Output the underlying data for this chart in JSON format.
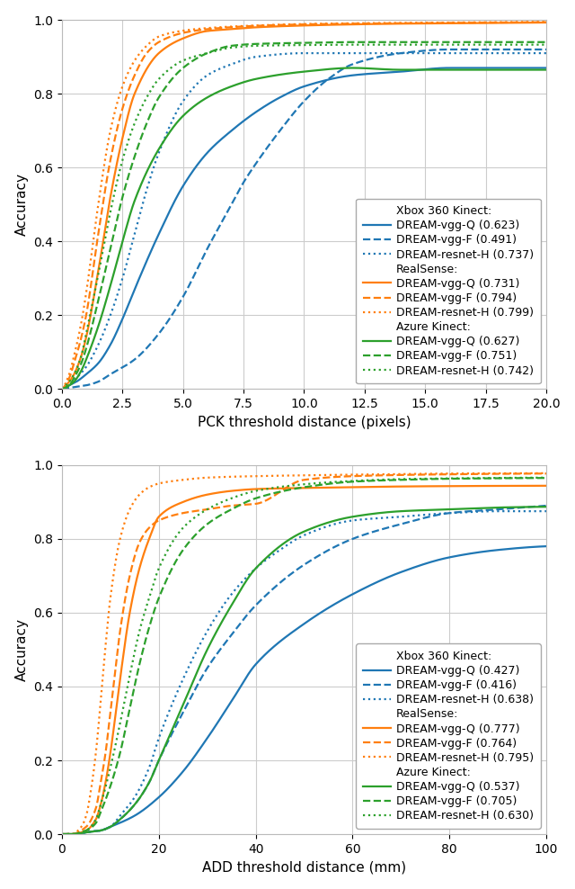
{
  "plot1": {
    "xlabel": "PCK threshold distance (pixels)",
    "ylabel": "Accuracy",
    "xlim": [
      0.0,
      20.0
    ],
    "ylim": [
      0.0,
      1.0
    ],
    "xticks": [
      0.0,
      2.5,
      5.0,
      7.5,
      10.0,
      12.5,
      15.0,
      17.5,
      20.0
    ],
    "yticks": [
      0.0,
      0.2,
      0.4,
      0.6,
      0.8,
      1.0
    ],
    "legend_loc": "lower right",
    "legend_bbox": null,
    "curves": [
      {
        "color": "#1f77b4",
        "linestyle": "solid",
        "pts_x": [
          0,
          0.3,
          0.6,
          1.0,
          1.5,
          2.0,
          2.5,
          3.0,
          4.0,
          5.0,
          6.0,
          7.0,
          8.0,
          9.0,
          10.0,
          12.0,
          14.0,
          16.0,
          18.0,
          20.0
        ],
        "pts_y": [
          0,
          0.01,
          0.02,
          0.04,
          0.07,
          0.12,
          0.19,
          0.27,
          0.42,
          0.55,
          0.64,
          0.7,
          0.75,
          0.79,
          0.82,
          0.85,
          0.86,
          0.87,
          0.87,
          0.87
        ]
      },
      {
        "color": "#1f77b4",
        "linestyle": "dashed",
        "pts_x": [
          0,
          0.5,
          1.0,
          1.5,
          2.0,
          3.0,
          4.0,
          5.0,
          6.0,
          7.0,
          7.5,
          8.0,
          9.0,
          10.0,
          11.0,
          12.0,
          14.0,
          16.0,
          18.0,
          20.0
        ],
        "pts_y": [
          0,
          0.005,
          0.01,
          0.02,
          0.04,
          0.08,
          0.15,
          0.25,
          0.38,
          0.5,
          0.56,
          0.61,
          0.7,
          0.78,
          0.84,
          0.88,
          0.91,
          0.92,
          0.92,
          0.92
        ]
      },
      {
        "color": "#1f77b4",
        "linestyle": "dotted",
        "pts_x": [
          0,
          0.3,
          0.6,
          1.0,
          1.5,
          2.0,
          2.5,
          3.0,
          3.5,
          4.0,
          5.0,
          6.0,
          7.0,
          8.0,
          10.0,
          12.0,
          14.0,
          16.0,
          18.0,
          20.0
        ],
        "pts_y": [
          0,
          0.01,
          0.03,
          0.06,
          0.12,
          0.2,
          0.3,
          0.42,
          0.54,
          0.64,
          0.78,
          0.85,
          0.88,
          0.9,
          0.91,
          0.91,
          0.91,
          0.91,
          0.91,
          0.91
        ]
      },
      {
        "color": "#ff7f0e",
        "linestyle": "solid",
        "pts_x": [
          0,
          0.3,
          0.5,
          0.8,
          1.0,
          1.5,
          2.0,
          2.5,
          3.0,
          4.0,
          5.0,
          6.0,
          7.0,
          8.0,
          10.0,
          12.0,
          14.0,
          16.0,
          18.0,
          20.0
        ],
        "pts_y": [
          0,
          0.02,
          0.04,
          0.09,
          0.14,
          0.32,
          0.52,
          0.68,
          0.8,
          0.91,
          0.95,
          0.97,
          0.975,
          0.98,
          0.985,
          0.988,
          0.99,
          0.991,
          0.992,
          0.993
        ]
      },
      {
        "color": "#ff7f0e",
        "linestyle": "dashed",
        "pts_x": [
          0,
          0.3,
          0.5,
          0.8,
          1.0,
          1.5,
          2.0,
          2.5,
          3.0,
          3.5,
          4.0,
          5.0,
          6.0,
          8.0,
          10.0,
          12.0,
          14.0,
          16.0,
          18.0,
          20.0
        ],
        "pts_y": [
          0,
          0.03,
          0.07,
          0.14,
          0.2,
          0.42,
          0.62,
          0.76,
          0.85,
          0.91,
          0.94,
          0.965,
          0.975,
          0.984,
          0.988,
          0.99,
          0.991,
          0.992,
          0.993,
          0.994
        ]
      },
      {
        "color": "#ff7f0e",
        "linestyle": "dotted",
        "pts_x": [
          0,
          0.3,
          0.5,
          0.8,
          1.0,
          1.5,
          2.0,
          2.5,
          3.0,
          3.5,
          4.0,
          5.0,
          6.0,
          8.0,
          10.0,
          12.0,
          14.0,
          16.0,
          18.0,
          20.0
        ],
        "pts_y": [
          0,
          0.04,
          0.09,
          0.18,
          0.26,
          0.5,
          0.7,
          0.82,
          0.89,
          0.93,
          0.955,
          0.971,
          0.978,
          0.985,
          0.989,
          0.991,
          0.992,
          0.993,
          0.994,
          0.995
        ]
      },
      {
        "color": "#2ca02c",
        "linestyle": "solid",
        "pts_x": [
          0,
          0.3,
          0.5,
          0.8,
          1.0,
          1.5,
          2.0,
          2.5,
          3.0,
          4.0,
          5.0,
          6.0,
          7.0,
          8.0,
          10.0,
          12.0,
          14.0,
          16.0,
          18.0,
          20.0
        ],
        "pts_y": [
          0,
          0.01,
          0.02,
          0.05,
          0.08,
          0.17,
          0.28,
          0.4,
          0.51,
          0.65,
          0.74,
          0.79,
          0.82,
          0.84,
          0.86,
          0.87,
          0.865,
          0.865,
          0.865,
          0.865
        ]
      },
      {
        "color": "#2ca02c",
        "linestyle": "dashed",
        "pts_x": [
          0,
          0.3,
          0.5,
          0.8,
          1.0,
          1.5,
          2.0,
          2.5,
          3.0,
          3.5,
          4.0,
          5.0,
          6.0,
          7.0,
          8.0,
          10.0,
          12.0,
          14.0,
          16.0,
          18.0,
          20.0
        ],
        "pts_y": [
          0,
          0.01,
          0.03,
          0.07,
          0.11,
          0.24,
          0.38,
          0.52,
          0.63,
          0.72,
          0.79,
          0.87,
          0.91,
          0.93,
          0.935,
          0.938,
          0.94,
          0.94,
          0.94,
          0.94,
          0.94
        ]
      },
      {
        "color": "#2ca02c",
        "linestyle": "dotted",
        "pts_x": [
          0,
          0.3,
          0.5,
          0.8,
          1.0,
          1.5,
          2.0,
          2.5,
          3.0,
          3.5,
          4.0,
          5.0,
          6.0,
          7.0,
          8.0,
          10.0,
          12.0,
          14.0,
          16.0,
          18.0,
          20.0
        ],
        "pts_y": [
          0,
          0.02,
          0.04,
          0.09,
          0.15,
          0.31,
          0.48,
          0.62,
          0.72,
          0.79,
          0.84,
          0.89,
          0.91,
          0.925,
          0.93,
          0.932,
          0.933,
          0.933,
          0.933,
          0.933,
          0.933
        ]
      }
    ],
    "legend_groups": [
      {
        "label": "Xbox 360 Kinect:",
        "color": "none",
        "linestyle": "solid"
      },
      {
        "label": "DREAM-vgg-Q (0.623)",
        "color": "#1f77b4",
        "linestyle": "solid"
      },
      {
        "label": "DREAM-vgg-F (0.491)",
        "color": "#1f77b4",
        "linestyle": "dashed"
      },
      {
        "label": "DREAM-resnet-H (0.737)",
        "color": "#1f77b4",
        "linestyle": "dotted"
      },
      {
        "label": "RealSense:",
        "color": "none",
        "linestyle": "solid"
      },
      {
        "label": "DREAM-vgg-Q (0.731)",
        "color": "#ff7f0e",
        "linestyle": "solid"
      },
      {
        "label": "DREAM-vgg-F (0.794)",
        "color": "#ff7f0e",
        "linestyle": "dashed"
      },
      {
        "label": "DREAM-resnet-H (0.799)",
        "color": "#ff7f0e",
        "linestyle": "dotted"
      },
      {
        "label": "Azure Kinect:",
        "color": "none",
        "linestyle": "solid"
      },
      {
        "label": "DREAM-vgg-Q (0.627)",
        "color": "#2ca02c",
        "linestyle": "solid"
      },
      {
        "label": "DREAM-vgg-F (0.751)",
        "color": "#2ca02c",
        "linestyle": "dashed"
      },
      {
        "label": "DREAM-resnet-H (0.742)",
        "color": "#2ca02c",
        "linestyle": "dotted"
      }
    ]
  },
  "plot2": {
    "xlabel": "ADD threshold distance (mm)",
    "ylabel": "Accuracy",
    "xlim": [
      0.0,
      100.0
    ],
    "ylim": [
      0.0,
      1.0
    ],
    "xticks": [
      0,
      20,
      40,
      60,
      80,
      100
    ],
    "yticks": [
      0.0,
      0.2,
      0.4,
      0.6,
      0.8,
      1.0
    ],
    "curves": [
      {
        "color": "#1f77b4",
        "linestyle": "solid",
        "pts_x": [
          0,
          2,
          5,
          8,
          10,
          15,
          20,
          25,
          30,
          35,
          40,
          50,
          60,
          70,
          80,
          90,
          100
        ],
        "pts_y": [
          0,
          0.0,
          0.005,
          0.01,
          0.02,
          0.05,
          0.1,
          0.17,
          0.26,
          0.36,
          0.46,
          0.57,
          0.65,
          0.71,
          0.75,
          0.77,
          0.78
        ]
      },
      {
        "color": "#1f77b4",
        "linestyle": "dashed",
        "pts_x": [
          0,
          2,
          5,
          8,
          10,
          12,
          15,
          18,
          20,
          25,
          30,
          35,
          40,
          50,
          60,
          70,
          80,
          90,
          100
        ],
        "pts_y": [
          0,
          0.0,
          0.005,
          0.01,
          0.02,
          0.04,
          0.08,
          0.14,
          0.2,
          0.33,
          0.45,
          0.54,
          0.62,
          0.73,
          0.8,
          0.84,
          0.87,
          0.88,
          0.89
        ]
      },
      {
        "color": "#1f77b4",
        "linestyle": "dotted",
        "pts_x": [
          0,
          2,
          5,
          8,
          10,
          12,
          15,
          18,
          20,
          25,
          30,
          35,
          40,
          45,
          50,
          60,
          70,
          80,
          90,
          100
        ],
        "pts_y": [
          0,
          0.0,
          0.005,
          0.01,
          0.02,
          0.05,
          0.1,
          0.18,
          0.26,
          0.42,
          0.55,
          0.65,
          0.72,
          0.77,
          0.81,
          0.85,
          0.86,
          0.87,
          0.875,
          0.875
        ]
      },
      {
        "color": "#ff7f0e",
        "linestyle": "solid",
        "pts_x": [
          0,
          2,
          5,
          7,
          8,
          9,
          10,
          12,
          14,
          16,
          18,
          20,
          25,
          30,
          35,
          40,
          50,
          60,
          70,
          80,
          100
        ],
        "pts_y": [
          0,
          0.0,
          0.01,
          0.04,
          0.08,
          0.14,
          0.22,
          0.42,
          0.6,
          0.72,
          0.8,
          0.86,
          0.9,
          0.92,
          0.93,
          0.935,
          0.938,
          0.94,
          0.942,
          0.943,
          0.944
        ]
      },
      {
        "color": "#ff7f0e",
        "linestyle": "dashed",
        "pts_x": [
          0,
          2,
          5,
          7,
          8,
          9,
          10,
          11,
          12,
          14,
          16,
          18,
          20,
          25,
          30,
          35,
          40,
          50,
          60,
          80,
          100
        ],
        "pts_y": [
          0,
          0.0,
          0.02,
          0.07,
          0.14,
          0.22,
          0.33,
          0.44,
          0.55,
          0.7,
          0.79,
          0.83,
          0.85,
          0.87,
          0.88,
          0.89,
          0.895,
          0.96,
          0.97,
          0.975,
          0.977
        ]
      },
      {
        "color": "#ff7f0e",
        "linestyle": "dotted",
        "pts_x": [
          0,
          2,
          4,
          5,
          6,
          7,
          8,
          9,
          10,
          12,
          14,
          16,
          18,
          20,
          25,
          30,
          40,
          60,
          80,
          100
        ],
        "pts_y": [
          0,
          0.0,
          0.02,
          0.05,
          0.12,
          0.22,
          0.36,
          0.51,
          0.64,
          0.8,
          0.88,
          0.92,
          0.94,
          0.95,
          0.96,
          0.966,
          0.97,
          0.974,
          0.977,
          0.978
        ]
      },
      {
        "color": "#2ca02c",
        "linestyle": "solid",
        "pts_x": [
          0,
          2,
          5,
          8,
          10,
          12,
          15,
          18,
          20,
          25,
          30,
          35,
          40,
          50,
          60,
          70,
          80,
          90,
          100
        ],
        "pts_y": [
          0,
          0.0,
          0.005,
          0.01,
          0.02,
          0.04,
          0.08,
          0.14,
          0.2,
          0.35,
          0.5,
          0.62,
          0.72,
          0.82,
          0.86,
          0.875,
          0.88,
          0.885,
          0.887
        ]
      },
      {
        "color": "#2ca02c",
        "linestyle": "dashed",
        "pts_x": [
          0,
          2,
          5,
          7,
          8,
          10,
          12,
          14,
          16,
          18,
          20,
          25,
          30,
          35,
          40,
          50,
          60,
          70,
          80,
          100
        ],
        "pts_y": [
          0,
          0.0,
          0.01,
          0.03,
          0.06,
          0.13,
          0.22,
          0.34,
          0.46,
          0.56,
          0.64,
          0.77,
          0.84,
          0.88,
          0.91,
          0.94,
          0.955,
          0.96,
          0.963,
          0.965
        ]
      },
      {
        "color": "#2ca02c",
        "linestyle": "dotted",
        "pts_x": [
          0,
          2,
          5,
          7,
          8,
          10,
          12,
          14,
          16,
          18,
          20,
          25,
          30,
          35,
          40,
          50,
          60,
          70,
          80,
          100
        ],
        "pts_y": [
          0,
          0.0,
          0.01,
          0.04,
          0.08,
          0.18,
          0.3,
          0.43,
          0.55,
          0.64,
          0.72,
          0.83,
          0.88,
          0.91,
          0.93,
          0.948,
          0.957,
          0.962,
          0.964,
          0.966
        ]
      }
    ],
    "legend_groups": [
      {
        "label": "Xbox 360 Kinect:",
        "color": "none",
        "linestyle": "solid"
      },
      {
        "label": "DREAM-vgg-Q (0.427)",
        "color": "#1f77b4",
        "linestyle": "solid"
      },
      {
        "label": "DREAM-vgg-F (0.416)",
        "color": "#1f77b4",
        "linestyle": "dashed"
      },
      {
        "label": "DREAM-resnet-H (0.638)",
        "color": "#1f77b4",
        "linestyle": "dotted"
      },
      {
        "label": "RealSense:",
        "color": "none",
        "linestyle": "solid"
      },
      {
        "label": "DREAM-vgg-Q (0.777)",
        "color": "#ff7f0e",
        "linestyle": "solid"
      },
      {
        "label": "DREAM-vgg-F (0.764)",
        "color": "#ff7f0e",
        "linestyle": "dashed"
      },
      {
        "label": "DREAM-resnet-H (0.795)",
        "color": "#ff7f0e",
        "linestyle": "dotted"
      },
      {
        "label": "Azure Kinect:",
        "color": "none",
        "linestyle": "solid"
      },
      {
        "label": "DREAM-vgg-Q (0.537)",
        "color": "#2ca02c",
        "linestyle": "solid"
      },
      {
        "label": "DREAM-vgg-F (0.705)",
        "color": "#2ca02c",
        "linestyle": "dashed"
      },
      {
        "label": "DREAM-resnet-H (0.630)",
        "color": "#2ca02c",
        "linestyle": "dotted"
      }
    ]
  },
  "linewidth": 1.6,
  "background_color": "#ffffff",
  "grid_color": "#cccccc"
}
